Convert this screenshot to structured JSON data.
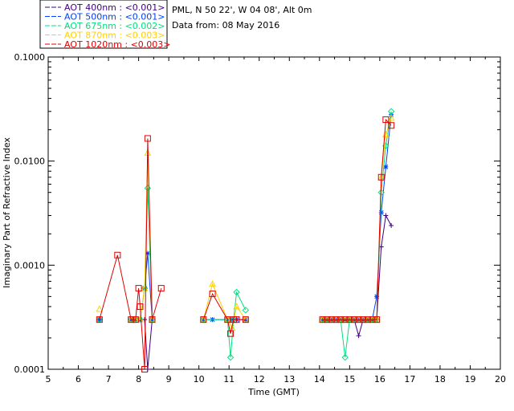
{
  "chart_data": {
    "type": "line",
    "xlabel": "Time (GMT)",
    "ylabel": "Imaginary Part of Refractive Index",
    "xlim": [
      5,
      20
    ],
    "ylim": [
      0.0001,
      0.1
    ],
    "yscale": "log",
    "xticks": [
      "5",
      "6",
      "7",
      "8",
      "9",
      "10",
      "11",
      "12",
      "13",
      "14",
      "15",
      "16",
      "17",
      "18",
      "19",
      "20"
    ],
    "yticks": [
      {
        "value": 0.0001,
        "label": "0.0001"
      },
      {
        "value": 0.001,
        "label": "0.0010"
      },
      {
        "value": 0.01,
        "label": "0.0100"
      },
      {
        "value": 0.1,
        "label": "0.1000"
      }
    ],
    "info": [
      "PML, N 50 22', W 04 08', Alt 0m",
      "Data from: 08 May 2016"
    ],
    "legend_placement": "top-left-outside",
    "series": [
      {
        "name": "AOT  400nm : <0.001>",
        "color": "#400080",
        "marker": "plus",
        "points": [
          [
            6.7,
            0.0003
          ],
          [
            7.75,
            0.0003
          ],
          [
            7.9,
            0.0003
          ],
          [
            8.05,
            0.0003
          ],
          [
            8.2,
            0.0003
          ],
          [
            8.3,
            0.0001
          ],
          [
            8.45,
            0.0003
          ],
          [
            10.15,
            0.0003
          ],
          [
            10.95,
            0.0003
          ],
          [
            11.1,
            0.0003
          ],
          [
            11.25,
            0.0003
          ],
          [
            11.55,
            0.0003
          ],
          [
            14.1,
            0.0003
          ],
          [
            14.25,
            0.0003
          ],
          [
            14.4,
            0.0003
          ],
          [
            14.55,
            0.0003
          ],
          [
            14.7,
            0.0003
          ],
          [
            14.85,
            0.0003
          ],
          [
            15.0,
            0.0003
          ],
          [
            15.15,
            0.0003
          ],
          [
            15.3,
            0.00021
          ],
          [
            15.45,
            0.0003
          ],
          [
            15.6,
            0.0003
          ],
          [
            15.75,
            0.0003
          ],
          [
            15.9,
            0.0003
          ],
          [
            16.05,
            0.0015
          ],
          [
            16.2,
            0.003
          ],
          [
            16.38,
            0.0024
          ]
        ]
      },
      {
        "name": "AOT  500nm : <0.001>",
        "color": "#0040ff",
        "marker": "star",
        "points": [
          [
            6.7,
            0.0003
          ],
          [
            7.75,
            0.0003
          ],
          [
            7.9,
            0.0003
          ],
          [
            8.05,
            0.0003
          ],
          [
            8.2,
            0.0006
          ],
          [
            8.3,
            0.0013
          ],
          [
            8.45,
            0.0003
          ],
          [
            10.15,
            0.0003
          ],
          [
            10.45,
            0.0003
          ],
          [
            10.95,
            0.0003
          ],
          [
            11.1,
            0.0003
          ],
          [
            11.25,
            0.0003
          ],
          [
            11.55,
            0.0003
          ],
          [
            14.1,
            0.0003
          ],
          [
            14.25,
            0.0003
          ],
          [
            14.4,
            0.0003
          ],
          [
            14.55,
            0.0003
          ],
          [
            14.7,
            0.0003
          ],
          [
            14.85,
            0.0003
          ],
          [
            15.0,
            0.0003
          ],
          [
            15.15,
            0.0003
          ],
          [
            15.3,
            0.0003
          ],
          [
            15.45,
            0.0003
          ],
          [
            15.6,
            0.0003
          ],
          [
            15.75,
            0.0003
          ],
          [
            15.9,
            0.0005
          ],
          [
            16.05,
            0.0032
          ],
          [
            16.2,
            0.0088
          ],
          [
            16.38,
            0.028
          ]
        ]
      },
      {
        "name": "AOT  675nm : <0.002>",
        "color": "#00e080",
        "marker": "diamond",
        "points": [
          [
            6.7,
            0.0003
          ],
          [
            7.75,
            0.0003
          ],
          [
            7.9,
            0.0003
          ],
          [
            8.05,
            0.0003
          ],
          [
            8.2,
            0.0006
          ],
          [
            8.3,
            0.0055
          ],
          [
            8.45,
            0.0003
          ],
          [
            10.15,
            0.0003
          ],
          [
            10.95,
            0.0003
          ],
          [
            11.05,
            0.00013
          ],
          [
            11.15,
            0.0003
          ],
          [
            11.25,
            0.00055
          ],
          [
            11.55,
            0.00037
          ],
          [
            14.1,
            0.0003
          ],
          [
            14.25,
            0.0003
          ],
          [
            14.4,
            0.0003
          ],
          [
            14.55,
            0.0003
          ],
          [
            14.7,
            0.0003
          ],
          [
            14.85,
            0.00013
          ],
          [
            15.0,
            0.0003
          ],
          [
            15.15,
            0.0003
          ],
          [
            15.3,
            0.0003
          ],
          [
            15.45,
            0.0003
          ],
          [
            15.6,
            0.0003
          ],
          [
            15.75,
            0.0003
          ],
          [
            15.9,
            0.0003
          ],
          [
            16.05,
            0.005
          ],
          [
            16.2,
            0.014
          ],
          [
            16.38,
            0.03
          ]
        ]
      },
      {
        "name": "AOT  870nm : <0.003>",
        "color": "#ffd000",
        "marker": "triangle",
        "points": [
          [
            6.7,
            0.00038
          ],
          [
            7.75,
            0.0003
          ],
          [
            7.9,
            0.0003
          ],
          [
            8.05,
            0.0003
          ],
          [
            8.2,
            0.0006
          ],
          [
            8.3,
            0.012
          ],
          [
            8.45,
            0.0003
          ],
          [
            10.15,
            0.0003
          ],
          [
            10.45,
            0.00066
          ],
          [
            10.95,
            0.0003
          ],
          [
            11.1,
            0.00025
          ],
          [
            11.25,
            0.0004
          ],
          [
            11.55,
            0.0003
          ],
          [
            14.1,
            0.0003
          ],
          [
            14.25,
            0.0003
          ],
          [
            14.4,
            0.0003
          ],
          [
            14.55,
            0.0003
          ],
          [
            14.7,
            0.0003
          ],
          [
            14.85,
            0.0003
          ],
          [
            15.0,
            0.0003
          ],
          [
            15.15,
            0.0003
          ],
          [
            15.3,
            0.0003
          ],
          [
            15.45,
            0.0003
          ],
          [
            15.6,
            0.0003
          ],
          [
            15.75,
            0.0003
          ],
          [
            15.9,
            0.0003
          ],
          [
            16.05,
            0.007
          ],
          [
            16.2,
            0.018
          ],
          [
            16.38,
            0.026
          ]
        ]
      },
      {
        "name": "AOT 1020nm : <0.003>",
        "color": "#e00000",
        "marker": "square",
        "points": [
          [
            6.7,
            0.0003
          ],
          [
            7.3,
            0.00125
          ],
          [
            7.75,
            0.0003
          ],
          [
            7.9,
            0.0003
          ],
          [
            8.0,
            0.0006
          ],
          [
            8.05,
            0.0004
          ],
          [
            8.2,
            0.0001
          ],
          [
            8.3,
            0.0165
          ],
          [
            8.45,
            0.0003
          ],
          [
            8.75,
            0.0006
          ],
          [
            10.15,
            0.0003
          ],
          [
            10.45,
            0.00053
          ],
          [
            10.95,
            0.0003
          ],
          [
            11.05,
            0.00022
          ],
          [
            11.15,
            0.0003
          ],
          [
            11.25,
            0.0003
          ],
          [
            11.55,
            0.0003
          ],
          [
            14.1,
            0.0003
          ],
          [
            14.25,
            0.0003
          ],
          [
            14.4,
            0.0003
          ],
          [
            14.55,
            0.0003
          ],
          [
            14.7,
            0.0003
          ],
          [
            14.85,
            0.0003
          ],
          [
            15.0,
            0.0003
          ],
          [
            15.15,
            0.0003
          ],
          [
            15.3,
            0.0003
          ],
          [
            15.45,
            0.0003
          ],
          [
            15.6,
            0.0003
          ],
          [
            15.75,
            0.0003
          ],
          [
            15.9,
            0.0003
          ],
          [
            16.05,
            0.007
          ],
          [
            16.2,
            0.025
          ],
          [
            16.38,
            0.022
          ]
        ]
      }
    ]
  }
}
